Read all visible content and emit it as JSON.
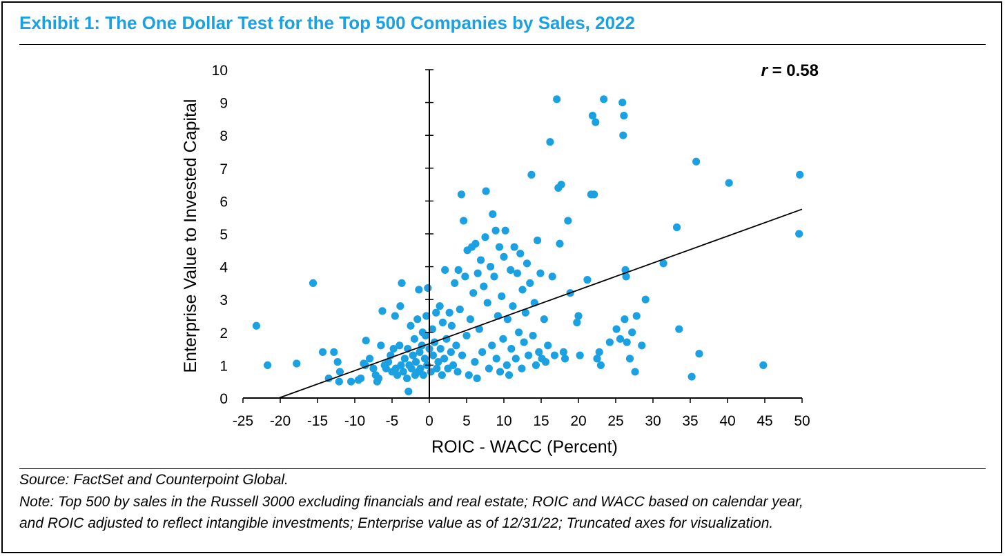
{
  "exhibit": {
    "title": "Exhibit 1: The One Dollar Test for the Top 500 Companies by Sales, 2022",
    "source": "Source: FactSet and Counterpoint Global.",
    "note_line1": "Note: Top 500 by sales in the Russell 3000 excluding financials and real estate; ROIC and WACC based on calendar year,",
    "note_line2": "and ROIC adjusted to reflect intangible investments; Enterprise value as of 12/31/22; Truncated axes for visualization."
  },
  "colors": {
    "title": "#1ba1e2",
    "points": "#1ba1e2",
    "trendline": "#000000"
  },
  "chart_data": {
    "type": "scatter",
    "title": "Exhibit 1: The One Dollar Test for the Top 500 Companies by Sales, 2022",
    "xlabel": "ROIC - WACC (Percent)",
    "ylabel": "Enterprise Value to Invested Capital",
    "xlim": [
      -25,
      50
    ],
    "ylim": [
      0,
      10
    ],
    "xticks": [
      -25,
      -20,
      -15,
      -10,
      -5,
      0,
      5,
      10,
      15,
      20,
      25,
      30,
      35,
      40,
      45,
      50
    ],
    "yticks": [
      0,
      1,
      2,
      3,
      4,
      5,
      6,
      7,
      8,
      9,
      10
    ],
    "xtick_labels": [
      "-25",
      "-20",
      "-15",
      "-10",
      "-5",
      "0",
      "5",
      "10",
      "15",
      "20",
      "25",
      "30",
      "35",
      "40",
      "45",
      "50"
    ],
    "ytick_labels": [
      "0",
      "1",
      "2",
      "3",
      "4",
      "5",
      "6",
      "7",
      "8",
      "9",
      "10"
    ],
    "grid": false,
    "annotation": {
      "prefix": "r",
      "text": " = 0.58"
    },
    "trendline": {
      "x": [
        -20.2,
        50
      ],
      "y": [
        0,
        5.75
      ]
    },
    "points": [
      [
        -23.2,
        2.2
      ],
      [
        -21.7,
        1.0
      ],
      [
        -17.8,
        1.05
      ],
      [
        -15.6,
        3.5
      ],
      [
        -14.3,
        1.4
      ],
      [
        -13.5,
        0.6
      ],
      [
        -12.8,
        1.4
      ],
      [
        -12.3,
        1.1
      ],
      [
        -12.1,
        0.5
      ],
      [
        -12.0,
        0.8
      ],
      [
        -10.5,
        0.5
      ],
      [
        -9.5,
        0.55
      ],
      [
        -9.2,
        0.6
      ],
      [
        -8.8,
        1.05
      ],
      [
        -8.6,
        1.0
      ],
      [
        -8.5,
        1.75
      ],
      [
        -8.0,
        1.2
      ],
      [
        -7.5,
        0.9
      ],
      [
        -7.2,
        0.7
      ],
      [
        -7.0,
        0.5
      ],
      [
        -6.8,
        0.6
      ],
      [
        -6.5,
        1.6
      ],
      [
        -6.3,
        2.65
      ],
      [
        -6.0,
        1.0
      ],
      [
        -5.8,
        0.9
      ],
      [
        -5.5,
        1.1
      ],
      [
        -5.2,
        1.3
      ],
      [
        -5.0,
        0.8
      ],
      [
        -4.8,
        1.5
      ],
      [
        -4.6,
        2.5
      ],
      [
        -4.5,
        0.9
      ],
      [
        -4.3,
        0.7
      ],
      [
        -4.0,
        1.6
      ],
      [
        -3.9,
        2.8
      ],
      [
        -3.8,
        1.0
      ],
      [
        -3.7,
        3.5
      ],
      [
        -3.5,
        0.8
      ],
      [
        -3.3,
        1.2
      ],
      [
        -3.0,
        0.6
      ],
      [
        -2.9,
        1.5
      ],
      [
        -2.8,
        0.2
      ],
      [
        -2.7,
        1.0
      ],
      [
        -2.5,
        2.2
      ],
      [
        -2.4,
        0.9
      ],
      [
        -2.2,
        1.3
      ],
      [
        -2.0,
        1.8
      ],
      [
        -1.9,
        0.7
      ],
      [
        -1.8,
        1.1
      ],
      [
        -1.6,
        2.4
      ],
      [
        -1.5,
        0.8
      ],
      [
        -1.4,
        3.3
      ],
      [
        -1.3,
        1.4
      ],
      [
        -1.2,
        0.9
      ],
      [
        -1.0,
        1.6
      ],
      [
        -0.9,
        2.0
      ],
      [
        -0.8,
        0.7
      ],
      [
        -0.6,
        1.2
      ],
      [
        -0.5,
        1.9
      ],
      [
        -0.4,
        2.5
      ],
      [
        -0.3,
        1.0
      ],
      [
        -0.2,
        3.35
      ],
      [
        0.0,
        1.5
      ],
      [
        0.2,
        0.8
      ],
      [
        0.4,
        2.1
      ],
      [
        0.5,
        1.3
      ],
      [
        0.7,
        1.7
      ],
      [
        0.9,
        2.6
      ],
      [
        1.0,
        0.9
      ],
      [
        1.2,
        1.1
      ],
      [
        1.4,
        2.8
      ],
      [
        1.5,
        1.5
      ],
      [
        1.7,
        0.7
      ],
      [
        1.8,
        2.3
      ],
      [
        2.0,
        1.2
      ],
      [
        2.1,
        3.9
      ],
      [
        2.3,
        1.8
      ],
      [
        2.5,
        0.9
      ],
      [
        2.7,
        2.6
      ],
      [
        2.9,
        1.4
      ],
      [
        3.0,
        2.2
      ],
      [
        3.2,
        1.0
      ],
      [
        3.4,
        3.5
      ],
      [
        3.6,
        1.6
      ],
      [
        3.8,
        0.8
      ],
      [
        3.9,
        3.9
      ],
      [
        4.1,
        2.7
      ],
      [
        4.3,
        6.2
      ],
      [
        4.4,
        1.3
      ],
      [
        4.6,
        5.4
      ],
      [
        4.8,
        3.7
      ],
      [
        5.0,
        1.9
      ],
      [
        5.1,
        4.5
      ],
      [
        5.3,
        0.7
      ],
      [
        5.5,
        2.4
      ],
      [
        5.7,
        4.6
      ],
      [
        5.9,
        3.2
      ],
      [
        6.1,
        1.1
      ],
      [
        6.2,
        4.7
      ],
      [
        6.4,
        0.6
      ],
      [
        6.5,
        3.8
      ],
      [
        6.7,
        2.1
      ],
      [
        6.9,
        4.2
      ],
      [
        7.1,
        1.4
      ],
      [
        7.3,
        3.4
      ],
      [
        7.5,
        4.9
      ],
      [
        7.6,
        6.3
      ],
      [
        7.8,
        2.9
      ],
      [
        8.0,
        0.9
      ],
      [
        8.2,
        4.0
      ],
      [
        8.4,
        1.6
      ],
      [
        8.5,
        5.6
      ],
      [
        8.7,
        3.7
      ],
      [
        8.9,
        5.1
      ],
      [
        9.0,
        1.2
      ],
      [
        9.2,
        2.5
      ],
      [
        9.4,
        4.6
      ],
      [
        9.5,
        0.8
      ],
      [
        9.7,
        3.1
      ],
      [
        9.9,
        1.8
      ],
      [
        10.0,
        4.3
      ],
      [
        10.2,
        5.1
      ],
      [
        10.4,
        1.0
      ],
      [
        10.5,
        2.4
      ],
      [
        10.7,
        0.7
      ],
      [
        10.9,
        3.9
      ],
      [
        11.0,
        1.5
      ],
      [
        11.2,
        2.8
      ],
      [
        11.4,
        4.6
      ],
      [
        11.6,
        1.2
      ],
      [
        11.8,
        3.8
      ],
      [
        12.0,
        2.0
      ],
      [
        12.2,
        4.4
      ],
      [
        12.4,
        0.9
      ],
      [
        12.5,
        3.3
      ],
      [
        12.7,
        1.7
      ],
      [
        12.9,
        2.6
      ],
      [
        13.1,
        4.1
      ],
      [
        13.3,
        1.3
      ],
      [
        13.5,
        3.5
      ],
      [
        13.7,
        6.8
      ],
      [
        13.9,
        1.9
      ],
      [
        14.1,
        2.9
      ],
      [
        14.3,
        1.0
      ],
      [
        14.5,
        4.8
      ],
      [
        14.7,
        1.4
      ],
      [
        14.9,
        3.8
      ],
      [
        15.1,
        1.2
      ],
      [
        15.4,
        2.4
      ],
      [
        15.6,
        1.1
      ],
      [
        15.9,
        1.6
      ],
      [
        16.2,
        7.8
      ],
      [
        16.5,
        3.7
      ],
      [
        16.8,
        1.3
      ],
      [
        17.1,
        9.1
      ],
      [
        17.3,
        6.4
      ],
      [
        17.5,
        4.7
      ],
      [
        17.7,
        6.5
      ],
      [
        18.0,
        1.4
      ],
      [
        18.2,
        1.2
      ],
      [
        18.6,
        5.4
      ],
      [
        18.9,
        3.2
      ],
      [
        19.8,
        2.3
      ],
      [
        20.0,
        2.5
      ],
      [
        20.2,
        1.3
      ],
      [
        21.2,
        3.6
      ],
      [
        21.7,
        6.2
      ],
      [
        21.9,
        8.6
      ],
      [
        22.1,
        6.2
      ],
      [
        22.3,
        8.4
      ],
      [
        22.5,
        1.2
      ],
      [
        22.8,
        1.4
      ],
      [
        23.0,
        1.0
      ],
      [
        23.4,
        9.1
      ],
      [
        24.2,
        1.7
      ],
      [
        25.1,
        2.1
      ],
      [
        25.6,
        1.8
      ],
      [
        25.9,
        9.0
      ],
      [
        26.0,
        8.0
      ],
      [
        26.1,
        8.6
      ],
      [
        26.2,
        2.4
      ],
      [
        26.3,
        3.9
      ],
      [
        26.4,
        3.7
      ],
      [
        26.5,
        1.7
      ],
      [
        26.9,
        1.2
      ],
      [
        27.2,
        2.0
      ],
      [
        27.6,
        0.8
      ],
      [
        27.8,
        2.5
      ],
      [
        28.5,
        1.6
      ],
      [
        29.0,
        3.0
      ],
      [
        31.4,
        4.1
      ],
      [
        33.2,
        5.2
      ],
      [
        33.5,
        2.1
      ],
      [
        35.2,
        0.65
      ],
      [
        35.8,
        7.2
      ],
      [
        36.2,
        1.35
      ],
      [
        40.2,
        6.55
      ],
      [
        44.8,
        1.0
      ],
      [
        49.7,
        6.8
      ],
      [
        49.6,
        5.0
      ]
    ]
  }
}
